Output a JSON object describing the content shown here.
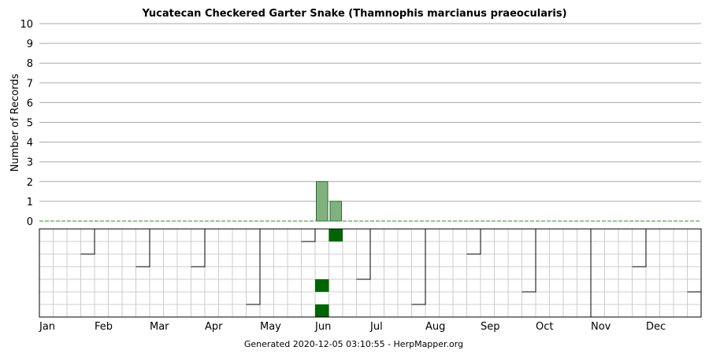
{
  "chart_data": {
    "type": "bar",
    "title": "Yucatecan Checkered Garter Snake (Thamnophis marcianus praeocularis)",
    "ylabel": "Number of Records",
    "ylim": [
      0,
      10
    ],
    "yticks": [
      0,
      1,
      2,
      3,
      4,
      5,
      6,
      7,
      8,
      9,
      10
    ],
    "grid": true,
    "months": [
      "Jan",
      "Feb",
      "Mar",
      "Apr",
      "May",
      "Jun",
      "Jul",
      "Aug",
      "Sep",
      "Oct",
      "Nov",
      "Dec"
    ],
    "bars_per_month": 4,
    "bar_color": "#7fb27f",
    "weekly_records": [
      0,
      0,
      0,
      0,
      0,
      0,
      0,
      0,
      0,
      0,
      0,
      0,
      0,
      0,
      0,
      0,
      0,
      0,
      0,
      0,
      2,
      1,
      0,
      0,
      0,
      0,
      0,
      0,
      0,
      0,
      0,
      0,
      0,
      0,
      0,
      0,
      0,
      0,
      0,
      0,
      0,
      0,
      0,
      0,
      0,
      0,
      0,
      0
    ],
    "time_of_day_grid": {
      "rows": 7,
      "highlight_color": "#006400",
      "cells": [
        {
          "week": 20,
          "row": 4
        },
        {
          "week": 20,
          "row": 6
        },
        {
          "week": 21,
          "row": 0
        }
      ]
    }
  },
  "footer": "Generated 2020-12-05 03:10:55 - HerpMapper.org"
}
